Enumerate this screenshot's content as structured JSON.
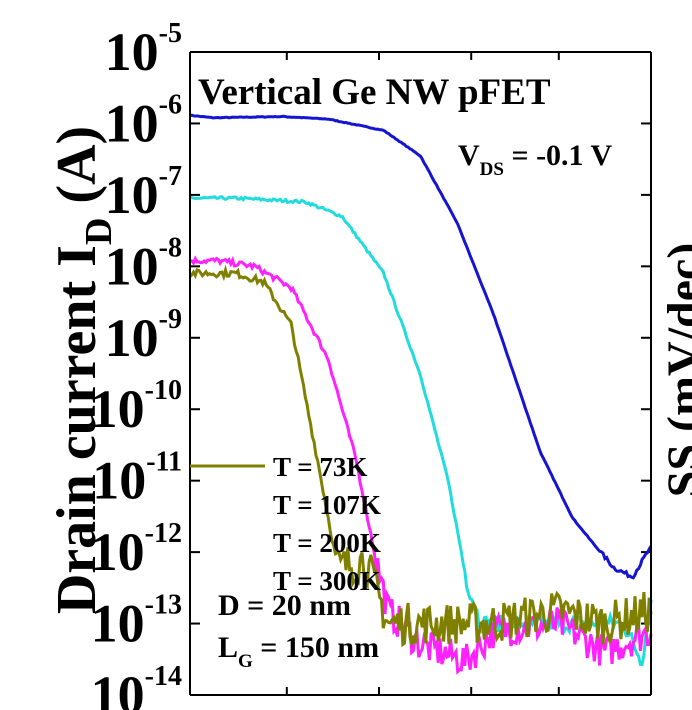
{
  "chart_data": {
    "type": "line",
    "title": "Vertical Ge NW pFET",
    "ylabel_main": "Drain current I",
    "ylabel_sub": "D",
    "ylabel_unit": " (A)",
    "right_label": "SS (mV/dec)",
    "y_scale": "log",
    "ylim": [
      1e-14,
      1e-05
    ],
    "y_ticks": [
      {
        "exp": "-5"
      },
      {
        "exp": "-6"
      },
      {
        "exp": "-7"
      },
      {
        "exp": "-8"
      },
      {
        "exp": "-9"
      },
      {
        "exp": "-10"
      },
      {
        "exp": "-11"
      },
      {
        "exp": "-12"
      },
      {
        "exp": "-13"
      },
      {
        "exp": "-14"
      }
    ],
    "annotations": {
      "vds_main": "V",
      "vds_sub": "DS",
      "vds_value": " = -0.1 V",
      "diameter": "D = 20 nm",
      "lg_main": "L",
      "lg_sub": "G",
      "lg_value": " = 150 nm"
    },
    "legend": [
      "T = 73K",
      "T = 107K",
      "T = 200K",
      "T = 300K"
    ],
    "series": [
      {
        "name": "T = 300K",
        "color": "#1414d2",
        "noise": 0.01,
        "points": [
          [
            0,
            1.3e-06
          ],
          [
            0.05,
            1.2e-06
          ],
          [
            0.2,
            1.25e-06
          ],
          [
            0.3,
            1.15e-06
          ],
          [
            0.42,
            8e-07
          ],
          [
            0.5,
            3.5e-07
          ],
          [
            0.58,
            4e-08
          ],
          [
            0.66,
            2e-09
          ],
          [
            0.76,
            2.5e-11
          ],
          [
            0.83,
            3e-12
          ],
          [
            0.88,
            1.2e-12
          ],
          [
            0.92,
            6e-13
          ],
          [
            0.96,
            4.5e-13
          ],
          [
            1.0,
            1.2e-12
          ]
        ]
      },
      {
        "name": "T = 200K",
        "color": "#20dcdc",
        "noise": 0.04,
        "points": [
          [
            0,
            9e-08
          ],
          [
            0.1,
            9e-08
          ],
          [
            0.25,
            8e-08
          ],
          [
            0.33,
            5e-08
          ],
          [
            0.42,
            8e-09
          ],
          [
            0.5,
            3e-10
          ],
          [
            0.56,
            1e-11
          ],
          [
            0.6,
            4e-13
          ],
          [
            0.63,
            1e-13
          ],
          [
            0.72,
            1e-13
          ],
          [
            0.85,
            1e-13
          ],
          [
            0.94,
            1e-13
          ],
          [
            0.98,
            3e-14
          ],
          [
            1.0,
            2e-13
          ]
        ]
      },
      {
        "name": "T = 107K",
        "color": "#ff22ff",
        "noise": 0.08,
        "points": [
          [
            0,
            1.2e-08
          ],
          [
            0.06,
            1.2e-08
          ],
          [
            0.14,
            1e-08
          ],
          [
            0.22,
            5e-09
          ],
          [
            0.3,
            5e-10
          ],
          [
            0.36,
            2e-11
          ],
          [
            0.4,
            1e-12
          ],
          [
            0.43,
            1.5e-13
          ],
          [
            0.5,
            5e-14
          ],
          [
            0.6,
            3e-14
          ],
          [
            0.66,
            8e-14
          ],
          [
            0.8,
            1e-13
          ],
          [
            0.9,
            4e-14
          ],
          [
            1.0,
            8e-14
          ]
        ]
      },
      {
        "name": "T = 73K",
        "color": "#808000",
        "noise": 0.1,
        "points": [
          [
            0,
            8e-09
          ],
          [
            0.1,
            8e-09
          ],
          [
            0.16,
            6e-09
          ],
          [
            0.22,
            1.5e-09
          ],
          [
            0.28,
            1.5e-11
          ],
          [
            0.32,
            6e-13
          ],
          [
            0.38,
            8e-13
          ],
          [
            0.43,
            1e-13
          ],
          [
            0.5,
            1e-13
          ],
          [
            0.65,
            1e-13
          ],
          [
            0.8,
            1.5e-13
          ],
          [
            0.9,
            1e-13
          ],
          [
            1.0,
            1.5e-13
          ]
        ]
      }
    ]
  }
}
